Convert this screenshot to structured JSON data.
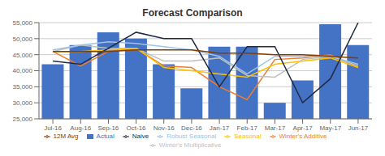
{
  "chart_data": {
    "type": "bar",
    "title": "Forecast Comparison",
    "categories": [
      "Jul-16",
      "Aug-16",
      "Sep-16",
      "Oct-16",
      "Nov-16",
      "Dec-16",
      "Jan-17",
      "Feb-17",
      "Mar-17",
      "Apr-17",
      "May-17",
      "Jun-17"
    ],
    "series": [
      {
        "name": "Actual",
        "type": "bar",
        "color": "#4472C4",
        "values": [
          42000,
          48000,
          52000,
          50000,
          42000,
          34500,
          47500,
          47500,
          30000,
          37000,
          54500,
          48000
        ]
      },
      {
        "name": "Winter's Additive",
        "type": "line",
        "color": "#ED7D31",
        "values": [
          46000,
          41500,
          46000,
          47000,
          41500,
          41000,
          35000,
          31000,
          43500,
          44000,
          45000,
          41000
        ]
      },
      {
        "name": "Winter's Multiplicative",
        "type": "line",
        "color": "#BFBFBF",
        "values": [
          46000,
          48000,
          47000,
          47000,
          43000,
          43000,
          44000,
          38500,
          38000,
          43500,
          44500,
          41500
        ]
      },
      {
        "name": "Seasonal",
        "type": "line",
        "color": "#FFC000",
        "values": [
          46000,
          46000,
          46500,
          47000,
          41000,
          40000,
          39000,
          38000,
          42000,
          43000,
          44000,
          41000
        ]
      },
      {
        "name": "Robust Seasonal",
        "type": "line",
        "color": "#9DC3E6",
        "values": [
          46500,
          48000,
          49000,
          48500,
          47500,
          46500,
          44500,
          39000,
          44500,
          44500,
          44500,
          42000
        ]
      },
      {
        "name": "Naive",
        "type": "line",
        "color": "#222B45",
        "values": [
          43000,
          42000,
          47000,
          52000,
          50000,
          50000,
          35000,
          47500,
          47500,
          30000,
          37500,
          55000
        ]
      },
      {
        "name": "12M Avg",
        "type": "line",
        "color": "#833C00",
        "values": [
          46000,
          46000,
          46000,
          46500,
          46500,
          46500,
          45500,
          45500,
          45000,
          45000,
          44500,
          44000
        ]
      }
    ],
    "ylim": [
      25000,
      55000
    ],
    "yticks": [
      {
        "value": 25000,
        "label": "25,000"
      },
      {
        "value": 30000,
        "label": "30,000"
      },
      {
        "value": 35000,
        "label": "35,000"
      },
      {
        "value": 40000,
        "label": "40,000"
      },
      {
        "value": 45000,
        "label": "45,000"
      },
      {
        "value": 50000,
        "label": "50,000"
      },
      {
        "value": 55000,
        "label": "55,000"
      }
    ],
    "grid": true,
    "legend": "bottom"
  }
}
